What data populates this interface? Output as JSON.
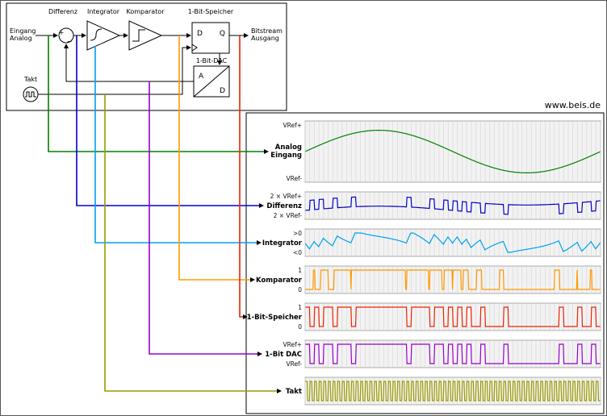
{
  "watermark": "www.beis.de",
  "diagram": {
    "input_label": [
      "Eingang",
      "Analog"
    ],
    "output_label": [
      "Bitstream",
      "Ausgang"
    ],
    "takt_label": "Takt",
    "blocks": {
      "differenz": "Differenz",
      "integrator": "Integrator",
      "komparator": "Komparator",
      "speicher": "1-Bit-Speicher",
      "dac": "1-Bit-DAC"
    },
    "sum": {
      "plus": "+",
      "minus": "−"
    },
    "flipflop": {
      "d": "D",
      "q": "Q"
    },
    "dac_pins": {
      "a": "A",
      "d": "D"
    }
  },
  "scope": {
    "simulation": {
      "clocks": 64,
      "substeps": 8,
      "sine_amplitude": 0.88,
      "sine_periods": 1
    },
    "rows": [
      {
        "id": "analog",
        "signal": "analog",
        "color": "#008000",
        "top": "VRef+",
        "bottom": "VRef-",
        "label_lines": [
          "Analog",
          "Eingang"
        ]
      },
      {
        "id": "differenz",
        "signal": "differenz",
        "color": "#0000cc",
        "top": "2 × VRef+",
        "bottom": "2 × VRef-",
        "label_lines": [
          "Differenz"
        ]
      },
      {
        "id": "integrator",
        "signal": "integrator",
        "color": "#00a0f0",
        "top": ">0",
        "bottom": "<0",
        "label_lines": [
          "Integrator"
        ]
      },
      {
        "id": "komparator",
        "signal": "komparator",
        "color": "#ff9900",
        "top": "1",
        "bottom": "0",
        "label_lines": [
          "Komparator"
        ]
      },
      {
        "id": "speicher",
        "signal": "speicher",
        "color": "#ee2200",
        "top": "1",
        "bottom": "0",
        "label_lines": [
          "1-Bit-Speicher"
        ]
      },
      {
        "id": "dac",
        "signal": "dac",
        "color": "#9900cc",
        "top": "VRef+",
        "bottom": "VRef-",
        "label_lines": [
          "1-Bit DAC"
        ]
      },
      {
        "id": "takt",
        "signal": "takt",
        "color": "#999900",
        "top": "",
        "bottom": "",
        "label_lines": [
          "Takt"
        ]
      }
    ]
  }
}
